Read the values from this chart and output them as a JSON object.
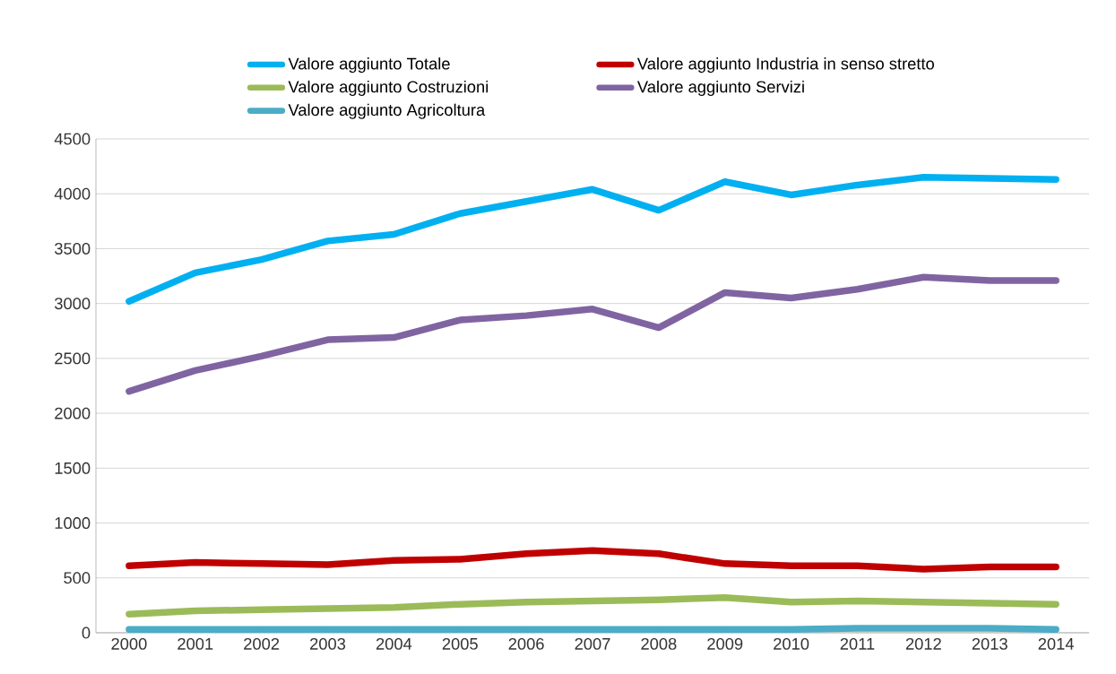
{
  "chart_data": {
    "type": "line",
    "categories": [
      "2000",
      "2001",
      "2002",
      "2003",
      "2004",
      "2005",
      "2006",
      "2007",
      "2008",
      "2009",
      "2010",
      "2011",
      "2012",
      "2013",
      "2014"
    ],
    "series": [
      {
        "name": "Valore aggiunto Totale",
        "color": "#00b0f0",
        "values": [
          3020,
          3280,
          3400,
          3570,
          3630,
          3820,
          3930,
          4040,
          3850,
          4110,
          3990,
          4080,
          4150,
          4140,
          4130
        ]
      },
      {
        "name": "Valore aggiunto Industria in senso stretto",
        "color": "#c00000",
        "values": [
          610,
          640,
          630,
          620,
          660,
          670,
          720,
          750,
          720,
          630,
          610,
          610,
          580,
          600,
          600
        ]
      },
      {
        "name": "Valore aggiunto Costruzioni",
        "color": "#9bbb59",
        "values": [
          170,
          200,
          210,
          220,
          230,
          260,
          280,
          290,
          300,
          320,
          280,
          290,
          280,
          270,
          260
        ]
      },
      {
        "name": "Valore aggiunto Servizi",
        "color": "#8064a2",
        "values": [
          2200,
          2390,
          2520,
          2670,
          2690,
          2850,
          2890,
          2950,
          2780,
          3100,
          3050,
          3130,
          3240,
          3210,
          3210
        ]
      },
      {
        "name": "Valore aggiunto Agricoltura",
        "color": "#4bacc6",
        "values": [
          30,
          30,
          30,
          30,
          30,
          30,
          30,
          30,
          30,
          30,
          30,
          40,
          40,
          40,
          30
        ]
      }
    ],
    "ylim": [
      0,
      4500
    ],
    "yticks": [
      0,
      500,
      1000,
      1500,
      2000,
      2500,
      3000,
      3500,
      4000,
      4500
    ],
    "grid": "y",
    "legend": "top",
    "marker": "none",
    "line_style": "solid"
  }
}
